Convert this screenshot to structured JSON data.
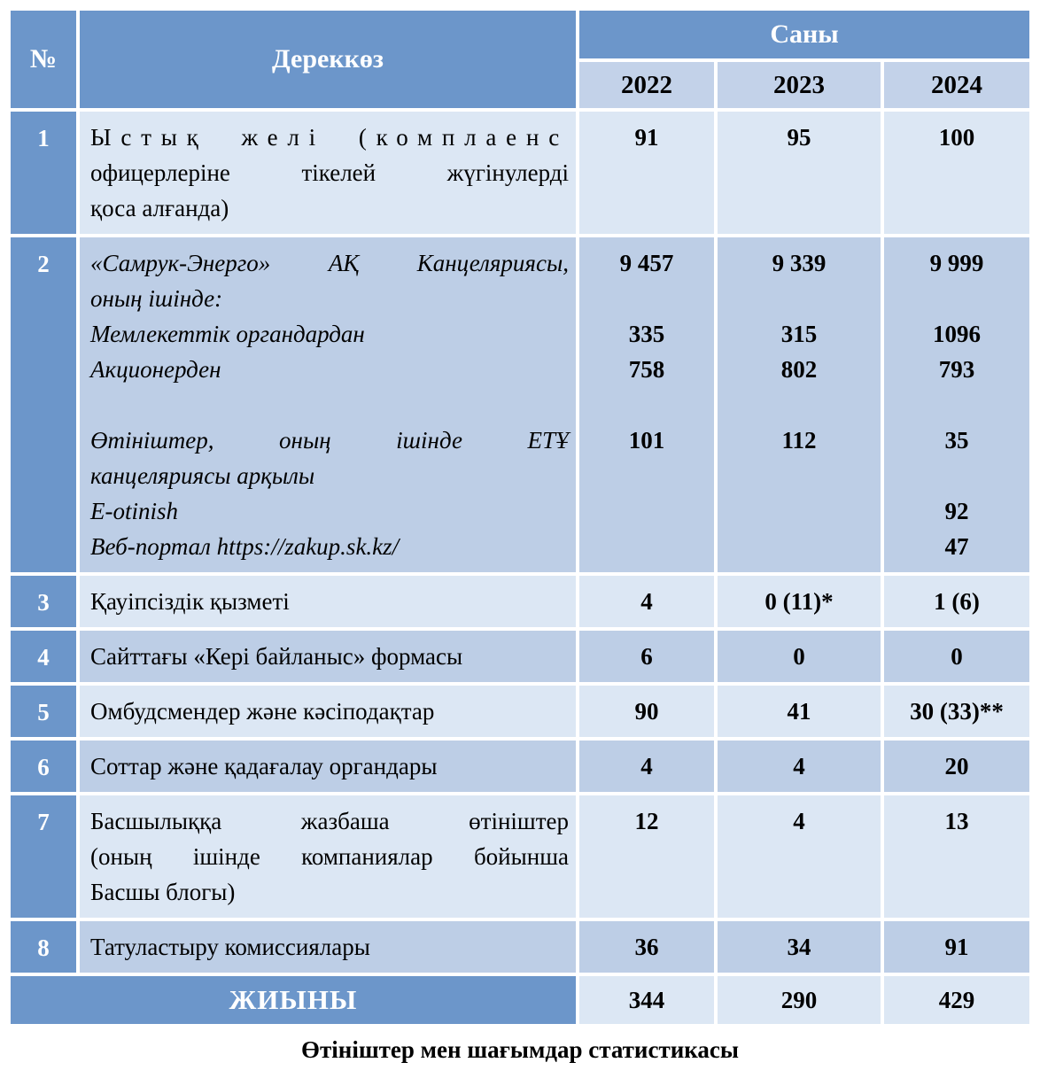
{
  "colors": {
    "header_blue": "#6c96ca",
    "medium_row_blue": "#bdcee6",
    "year_band_blue": "#c3d2e9",
    "light_row_blue": "#dce7f4",
    "border_white": "#ffffff"
  },
  "table": {
    "headers": {
      "num": "№",
      "source": "Дереккөз",
      "count": "Саны",
      "years": [
        "2022",
        "2023",
        "2024"
      ]
    },
    "rows": [
      {
        "num": "1",
        "italic": false,
        "desc_lines": [
          "Ыстық желі (комплаенс",
          "офицерлеріне тікелей жүгінулерді",
          "қоса алғанда)"
        ],
        "justify_lines": [
          0,
          1
        ],
        "spread_lines": [
          0
        ],
        "values": [
          [
            "91"
          ],
          [
            "95"
          ],
          [
            "100"
          ]
        ]
      },
      {
        "num": "2",
        "italic": true,
        "desc_lines": [
          "«Самрук-Энерго» АҚ Канцеляриясы,",
          "оның ішінде:",
          "Мемлекеттік органдардан",
          "Акционерден",
          "",
          "Өтініштер, оның ішінде ЕТҰ",
          "канцеляриясы арқылы",
          "E-otinish",
          "Веб-портал  https://zakup.sk.kz/"
        ],
        "justify_lines": [
          0,
          5
        ],
        "spread_lines": [],
        "values": [
          [
            "9 457",
            "",
            "335",
            "758",
            "",
            "101",
            "",
            "",
            ""
          ],
          [
            "9 339",
            "",
            "315",
            "802",
            "",
            "112",
            "",
            "",
            ""
          ],
          [
            "9 999",
            "",
            "1096",
            "793",
            "",
            "35",
            "",
            "92",
            "47"
          ]
        ]
      },
      {
        "num": "3",
        "italic": false,
        "desc_lines": [
          "Қауіпсіздік қызметі"
        ],
        "justify_lines": [],
        "spread_lines": [],
        "values": [
          [
            "4"
          ],
          [
            "0 (11)*"
          ],
          [
            "1 (6)"
          ]
        ]
      },
      {
        "num": "4",
        "italic": false,
        "desc_lines": [
          "Сайттағы «Кері байланыс» формасы"
        ],
        "justify_lines": [],
        "spread_lines": [],
        "values": [
          [
            "6"
          ],
          [
            "0"
          ],
          [
            "0"
          ]
        ]
      },
      {
        "num": "5",
        "italic": false,
        "desc_lines": [
          "Омбудсмендер және кәсіподақтар"
        ],
        "justify_lines": [],
        "spread_lines": [],
        "values": [
          [
            "90"
          ],
          [
            "41"
          ],
          [
            "30 (33)**"
          ]
        ]
      },
      {
        "num": "6",
        "italic": false,
        "desc_lines": [
          "Соттар және қадағалау органдары"
        ],
        "justify_lines": [],
        "spread_lines": [],
        "values": [
          [
            "4"
          ],
          [
            "4"
          ],
          [
            "20"
          ]
        ]
      },
      {
        "num": "7",
        "italic": false,
        "desc_lines": [
          "Басшылыққа жазбаша өтініштер",
          "(оның ішінде компаниялар бойынша",
          "Басшы блогы)"
        ],
        "justify_lines": [
          0,
          1
        ],
        "spread_lines": [],
        "values": [
          [
            "12"
          ],
          [
            "4"
          ],
          [
            "13"
          ]
        ]
      },
      {
        "num": "8",
        "italic": false,
        "desc_lines": [
          "Татуластыру комиссиялары"
        ],
        "justify_lines": [],
        "spread_lines": [],
        "values": [
          [
            "36"
          ],
          [
            "34"
          ],
          [
            "91"
          ]
        ]
      }
    ],
    "total": {
      "label": "ЖИЫНЫ",
      "values": [
        "344",
        "290",
        "429"
      ]
    }
  },
  "caption": "Өтініштер мен шағымдар статистикасы"
}
